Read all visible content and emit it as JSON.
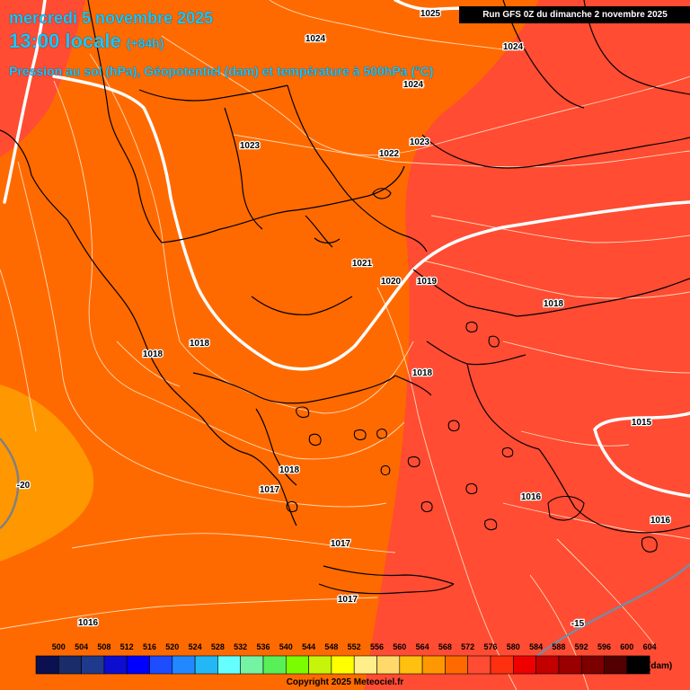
{
  "header": {
    "date": "mercredi 5 novembre 2025",
    "time": "13:00 locale",
    "step": "(+84h)",
    "fields": "Pression au sol (hPa), Géopotentiel (dam) et température à 500hPa (°C)",
    "run": "Run GFS 0Z du dimanche 2 novembre 2025"
  },
  "legend": {
    "unit": "(dam)",
    "ticks": [
      "500",
      "504",
      "508",
      "512",
      "516",
      "520",
      "524",
      "528",
      "532",
      "536",
      "540",
      "544",
      "548",
      "552",
      "556",
      "560",
      "564",
      "568",
      "572",
      "576",
      "580",
      "584",
      "588",
      "592",
      "596",
      "600",
      "604"
    ],
    "colors": [
      "#0a1050",
      "#1a2c6a",
      "#1f3a8c",
      "#0d0dd0",
      "#0000ff",
      "#1e4cff",
      "#2288ff",
      "#23b8f5",
      "#66ffff",
      "#74f3a2",
      "#59ef59",
      "#7cfc00",
      "#c6f50a",
      "#ffff00",
      "#ffef8a",
      "#ffd96a",
      "#ffc010",
      "#ff9800",
      "#ff6a00",
      "#ff4c33",
      "#ff3010",
      "#ef0000",
      "#c20000",
      "#9b0000",
      "#7c0000",
      "#520000",
      "#000000"
    ]
  },
  "pressure_labels": [
    "1025",
    "1024",
    "1024",
    "1024",
    "1023",
    "1023",
    "1022",
    "1021",
    "1020",
    "1019",
    "1018",
    "1018",
    "1018",
    "1018",
    "1018",
    "1017",
    "1017",
    "1017",
    "1016",
    "1016",
    "1016",
    "1015"
  ],
  "temperature_labels": [
    "-20",
    "-15"
  ],
  "copyright": "Copyright 2025 Meteociel.fr",
  "colors": {
    "zone_572": "#ff6a00",
    "zone_576": "#ff4c33",
    "zone_568": "#ff9800",
    "geopotential_line": "#ffffff",
    "title": "#18c8f8"
  }
}
